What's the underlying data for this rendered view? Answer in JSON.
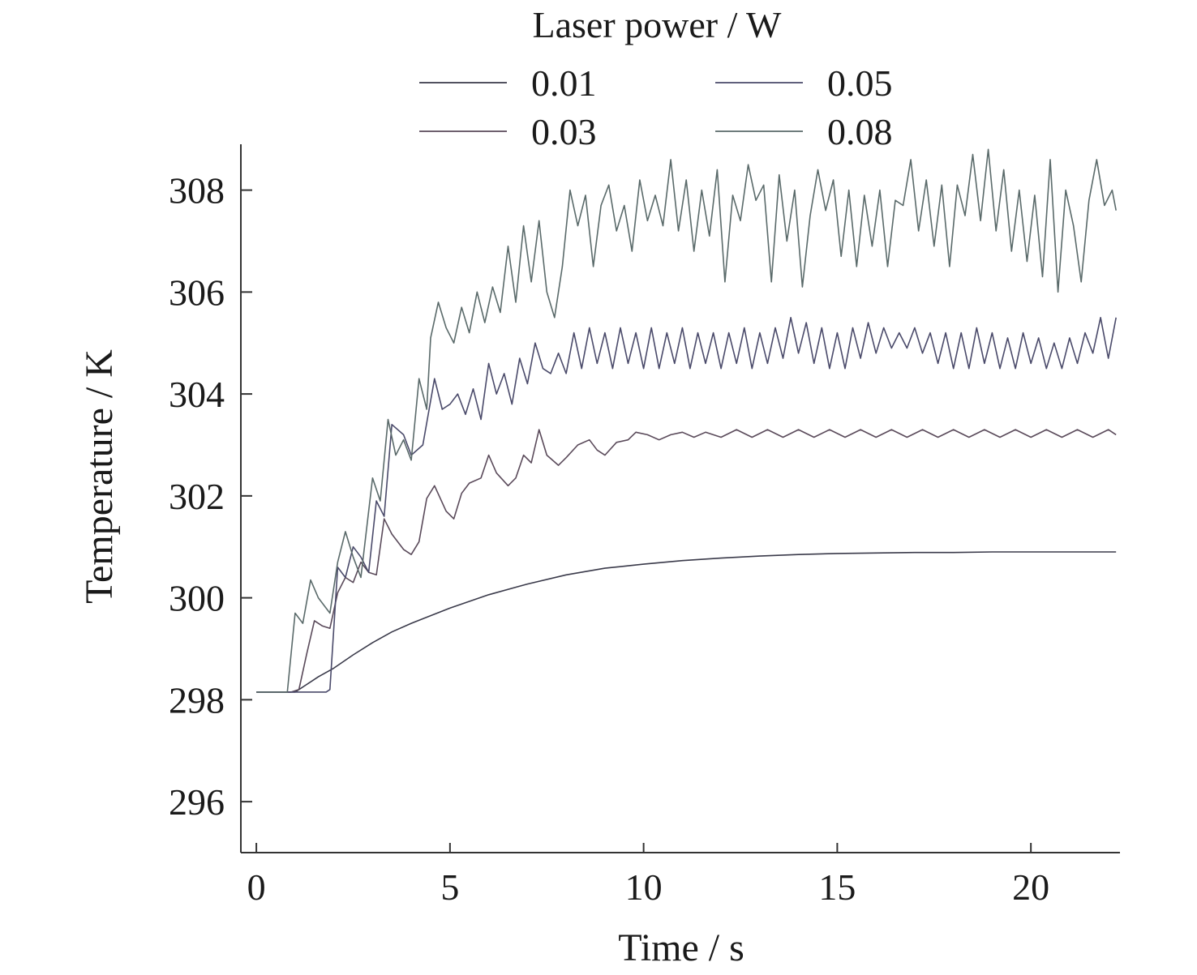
{
  "chart_data": {
    "type": "line",
    "xlabel": "Time / s",
    "ylabel": "Temperature / K",
    "xlim": [
      -0.4,
      22.3
    ],
    "ylim": [
      295,
      308.9
    ],
    "xticks": [
      0,
      5,
      10,
      15,
      20
    ],
    "yticks": [
      296,
      298,
      300,
      302,
      304,
      306,
      308
    ],
    "grid": false,
    "legend": {
      "title": "Laser power / W",
      "placement": "top",
      "columns": 2
    },
    "series": [
      {
        "name": "0.01",
        "color": "#3a3a4a",
        "points": [
          [
            0,
            298.15
          ],
          [
            1.0,
            298.15
          ],
          [
            1.3,
            298.3
          ],
          [
            1.6,
            298.45
          ],
          [
            2.0,
            298.62
          ],
          [
            2.5,
            298.88
          ],
          [
            3.0,
            299.12
          ],
          [
            3.5,
            299.33
          ],
          [
            4.0,
            299.5
          ],
          [
            5.0,
            299.8
          ],
          [
            6.0,
            300.06
          ],
          [
            7.0,
            300.27
          ],
          [
            8.0,
            300.45
          ],
          [
            9.0,
            300.58
          ],
          [
            10.0,
            300.66
          ],
          [
            11.0,
            300.73
          ],
          [
            12.0,
            300.78
          ],
          [
            13.0,
            300.82
          ],
          [
            14.0,
            300.85
          ],
          [
            15.0,
            300.87
          ],
          [
            16.0,
            300.88
          ],
          [
            17.0,
            300.89
          ],
          [
            18.0,
            300.89
          ],
          [
            19.0,
            300.9
          ],
          [
            20.0,
            300.9
          ],
          [
            21.0,
            300.9
          ],
          [
            22.2,
            300.9
          ]
        ]
      },
      {
        "name": "0.03",
        "color": "#5a4a5a",
        "points": [
          [
            0,
            298.15
          ],
          [
            0.9,
            298.15
          ],
          [
            1.1,
            298.2
          ],
          [
            1.3,
            298.9
          ],
          [
            1.5,
            299.55
          ],
          [
            1.7,
            299.45
          ],
          [
            1.9,
            299.4
          ],
          [
            2.1,
            300.1
          ],
          [
            2.3,
            300.4
          ],
          [
            2.5,
            300.3
          ],
          [
            2.7,
            300.7
          ],
          [
            2.9,
            300.5
          ],
          [
            3.1,
            300.45
          ],
          [
            3.3,
            301.55
          ],
          [
            3.5,
            301.25
          ],
          [
            3.8,
            300.95
          ],
          [
            4.0,
            300.85
          ],
          [
            4.2,
            301.1
          ],
          [
            4.4,
            301.95
          ],
          [
            4.6,
            302.2
          ],
          [
            4.9,
            301.7
          ],
          [
            5.1,
            301.55
          ],
          [
            5.3,
            302.05
          ],
          [
            5.5,
            302.25
          ],
          [
            5.8,
            302.35
          ],
          [
            6.0,
            302.8
          ],
          [
            6.2,
            302.45
          ],
          [
            6.5,
            302.2
          ],
          [
            6.7,
            302.35
          ],
          [
            6.9,
            302.8
          ],
          [
            7.1,
            302.65
          ],
          [
            7.3,
            303.3
          ],
          [
            7.5,
            302.8
          ],
          [
            7.8,
            302.6
          ],
          [
            8.0,
            302.75
          ],
          [
            8.3,
            303.0
          ],
          [
            8.6,
            303.1
          ],
          [
            8.8,
            302.9
          ],
          [
            9.0,
            302.8
          ],
          [
            9.3,
            303.05
          ],
          [
            9.6,
            303.1
          ],
          [
            9.8,
            303.25
          ],
          [
            10.1,
            303.2
          ],
          [
            10.4,
            303.1
          ],
          [
            10.7,
            303.2
          ],
          [
            11.0,
            303.25
          ],
          [
            11.3,
            303.15
          ],
          [
            11.6,
            303.25
          ],
          [
            12.0,
            303.15
          ],
          [
            12.4,
            303.3
          ],
          [
            12.8,
            303.15
          ],
          [
            13.2,
            303.3
          ],
          [
            13.6,
            303.15
          ],
          [
            14.0,
            303.3
          ],
          [
            14.4,
            303.15
          ],
          [
            14.8,
            303.3
          ],
          [
            15.2,
            303.15
          ],
          [
            15.6,
            303.3
          ],
          [
            16.0,
            303.15
          ],
          [
            16.4,
            303.3
          ],
          [
            16.8,
            303.15
          ],
          [
            17.2,
            303.3
          ],
          [
            17.6,
            303.15
          ],
          [
            18.0,
            303.3
          ],
          [
            18.4,
            303.15
          ],
          [
            18.8,
            303.3
          ],
          [
            19.2,
            303.15
          ],
          [
            19.6,
            303.3
          ],
          [
            20.0,
            303.15
          ],
          [
            20.4,
            303.3
          ],
          [
            20.8,
            303.15
          ],
          [
            21.2,
            303.3
          ],
          [
            21.6,
            303.15
          ],
          [
            22.0,
            303.3
          ],
          [
            22.2,
            303.2
          ]
        ]
      },
      {
        "name": "0.05",
        "color": "#4a4a6a",
        "points": [
          [
            0,
            298.15
          ],
          [
            1.8,
            298.15
          ],
          [
            1.9,
            298.2
          ],
          [
            2.1,
            300.6
          ],
          [
            2.3,
            300.4
          ],
          [
            2.5,
            301.0
          ],
          [
            2.7,
            300.8
          ],
          [
            2.9,
            300.5
          ],
          [
            3.1,
            301.9
          ],
          [
            3.3,
            301.6
          ],
          [
            3.5,
            303.4
          ],
          [
            3.8,
            303.2
          ],
          [
            4.0,
            302.8
          ],
          [
            4.3,
            303.0
          ],
          [
            4.6,
            304.3
          ],
          [
            4.8,
            303.7
          ],
          [
            5.0,
            303.8
          ],
          [
            5.2,
            304.0
          ],
          [
            5.4,
            303.6
          ],
          [
            5.6,
            304.1
          ],
          [
            5.8,
            303.5
          ],
          [
            6.0,
            304.6
          ],
          [
            6.2,
            304.0
          ],
          [
            6.4,
            304.4
          ],
          [
            6.6,
            303.8
          ],
          [
            6.8,
            304.7
          ],
          [
            7.0,
            304.2
          ],
          [
            7.2,
            305.0
          ],
          [
            7.4,
            304.5
          ],
          [
            7.6,
            304.4
          ],
          [
            7.8,
            304.8
          ],
          [
            8.0,
            304.4
          ],
          [
            8.2,
            305.2
          ],
          [
            8.4,
            304.5
          ],
          [
            8.6,
            305.3
          ],
          [
            8.8,
            304.6
          ],
          [
            9.0,
            305.2
          ],
          [
            9.2,
            304.5
          ],
          [
            9.4,
            305.3
          ],
          [
            9.6,
            304.6
          ],
          [
            9.8,
            305.2
          ],
          [
            10.0,
            304.5
          ],
          [
            10.2,
            305.3
          ],
          [
            10.4,
            304.5
          ],
          [
            10.6,
            305.2
          ],
          [
            10.8,
            304.6
          ],
          [
            11.0,
            305.3
          ],
          [
            11.2,
            304.5
          ],
          [
            11.4,
            305.2
          ],
          [
            11.6,
            304.6
          ],
          [
            11.8,
            305.2
          ],
          [
            12.0,
            304.5
          ],
          [
            12.2,
            305.2
          ],
          [
            12.4,
            304.6
          ],
          [
            12.6,
            305.3
          ],
          [
            12.8,
            304.5
          ],
          [
            13.0,
            305.2
          ],
          [
            13.2,
            304.6
          ],
          [
            13.4,
            305.3
          ],
          [
            13.6,
            304.7
          ],
          [
            13.8,
            305.5
          ],
          [
            14.0,
            304.8
          ],
          [
            14.2,
            305.4
          ],
          [
            14.4,
            304.6
          ],
          [
            14.6,
            305.3
          ],
          [
            14.8,
            304.5
          ],
          [
            15.0,
            305.2
          ],
          [
            15.2,
            304.5
          ],
          [
            15.4,
            305.3
          ],
          [
            15.6,
            304.7
          ],
          [
            15.8,
            305.4
          ],
          [
            16.0,
            304.8
          ],
          [
            16.2,
            305.3
          ],
          [
            16.4,
            304.9
          ],
          [
            16.6,
            305.2
          ],
          [
            16.8,
            304.9
          ],
          [
            17.0,
            305.3
          ],
          [
            17.2,
            304.8
          ],
          [
            17.4,
            305.2
          ],
          [
            17.6,
            304.6
          ],
          [
            17.8,
            305.2
          ],
          [
            18.0,
            304.5
          ],
          [
            18.2,
            305.2
          ],
          [
            18.4,
            304.5
          ],
          [
            18.6,
            305.3
          ],
          [
            18.8,
            304.6
          ],
          [
            19.0,
            305.2
          ],
          [
            19.2,
            304.5
          ],
          [
            19.4,
            305.1
          ],
          [
            19.6,
            304.5
          ],
          [
            19.8,
            305.2
          ],
          [
            20.0,
            304.6
          ],
          [
            20.2,
            305.1
          ],
          [
            20.4,
            304.5
          ],
          [
            20.6,
            305.0
          ],
          [
            20.8,
            304.5
          ],
          [
            21.0,
            305.1
          ],
          [
            21.2,
            304.6
          ],
          [
            21.4,
            305.2
          ],
          [
            21.6,
            304.8
          ],
          [
            21.8,
            305.5
          ],
          [
            22.0,
            304.7
          ],
          [
            22.2,
            305.5
          ]
        ]
      },
      {
        "name": "0.08",
        "color": "#5a6a6a",
        "points": [
          [
            0,
            298.15
          ],
          [
            0.8,
            298.15
          ],
          [
            1.0,
            299.7
          ],
          [
            1.2,
            299.5
          ],
          [
            1.4,
            300.35
          ],
          [
            1.6,
            300.0
          ],
          [
            1.9,
            299.7
          ],
          [
            2.1,
            300.7
          ],
          [
            2.3,
            301.3
          ],
          [
            2.5,
            300.8
          ],
          [
            2.7,
            300.4
          ],
          [
            3.0,
            302.35
          ],
          [
            3.2,
            301.9
          ],
          [
            3.4,
            303.5
          ],
          [
            3.6,
            302.8
          ],
          [
            3.8,
            303.1
          ],
          [
            4.0,
            302.7
          ],
          [
            4.2,
            304.3
          ],
          [
            4.4,
            303.7
          ],
          [
            4.5,
            305.1
          ],
          [
            4.7,
            305.8
          ],
          [
            4.9,
            305.3
          ],
          [
            5.1,
            305.0
          ],
          [
            5.3,
            305.7
          ],
          [
            5.5,
            305.2
          ],
          [
            5.7,
            306.0
          ],
          [
            5.9,
            305.4
          ],
          [
            6.1,
            306.1
          ],
          [
            6.3,
            305.6
          ],
          [
            6.5,
            306.9
          ],
          [
            6.7,
            305.8
          ],
          [
            6.9,
            307.3
          ],
          [
            7.1,
            306.2
          ],
          [
            7.3,
            307.4
          ],
          [
            7.5,
            306.0
          ],
          [
            7.7,
            305.5
          ],
          [
            7.9,
            306.5
          ],
          [
            8.1,
            308.0
          ],
          [
            8.3,
            307.3
          ],
          [
            8.5,
            307.9
          ],
          [
            8.7,
            306.5
          ],
          [
            8.9,
            307.7
          ],
          [
            9.1,
            308.1
          ],
          [
            9.3,
            307.2
          ],
          [
            9.5,
            307.7
          ],
          [
            9.7,
            306.8
          ],
          [
            9.9,
            308.2
          ],
          [
            10.1,
            307.4
          ],
          [
            10.3,
            307.9
          ],
          [
            10.5,
            307.3
          ],
          [
            10.7,
            308.6
          ],
          [
            10.9,
            307.2
          ],
          [
            11.1,
            308.2
          ],
          [
            11.3,
            306.8
          ],
          [
            11.5,
            308.0
          ],
          [
            11.7,
            307.1
          ],
          [
            11.9,
            308.4
          ],
          [
            12.1,
            306.2
          ],
          [
            12.3,
            307.9
          ],
          [
            12.5,
            307.4
          ],
          [
            12.7,
            308.5
          ],
          [
            12.9,
            307.8
          ],
          [
            13.1,
            308.1
          ],
          [
            13.3,
            306.2
          ],
          [
            13.5,
            308.3
          ],
          [
            13.7,
            307.0
          ],
          [
            13.9,
            308.0
          ],
          [
            14.1,
            306.1
          ],
          [
            14.3,
            307.5
          ],
          [
            14.5,
            308.4
          ],
          [
            14.7,
            307.6
          ],
          [
            14.9,
            308.2
          ],
          [
            15.1,
            306.7
          ],
          [
            15.3,
            308.0
          ],
          [
            15.5,
            306.5
          ],
          [
            15.7,
            307.9
          ],
          [
            15.9,
            306.9
          ],
          [
            16.1,
            308.0
          ],
          [
            16.3,
            306.5
          ],
          [
            16.5,
            307.8
          ],
          [
            16.7,
            307.7
          ],
          [
            16.9,
            308.6
          ],
          [
            17.1,
            307.2
          ],
          [
            17.3,
            308.2
          ],
          [
            17.5,
            306.9
          ],
          [
            17.7,
            308.1
          ],
          [
            17.9,
            306.5
          ],
          [
            18.1,
            308.1
          ],
          [
            18.3,
            307.5
          ],
          [
            18.5,
            308.7
          ],
          [
            18.7,
            307.4
          ],
          [
            18.9,
            308.8
          ],
          [
            19.1,
            307.2
          ],
          [
            19.3,
            308.4
          ],
          [
            19.5,
            306.8
          ],
          [
            19.7,
            308.0
          ],
          [
            19.9,
            306.6
          ],
          [
            20.1,
            307.9
          ],
          [
            20.3,
            306.3
          ],
          [
            20.5,
            308.6
          ],
          [
            20.7,
            306.0
          ],
          [
            20.9,
            308.0
          ],
          [
            21.1,
            307.3
          ],
          [
            21.3,
            306.2
          ],
          [
            21.5,
            307.8
          ],
          [
            21.7,
            308.6
          ],
          [
            21.9,
            307.7
          ],
          [
            22.1,
            308.0
          ],
          [
            22.2,
            307.6
          ]
        ]
      }
    ]
  }
}
